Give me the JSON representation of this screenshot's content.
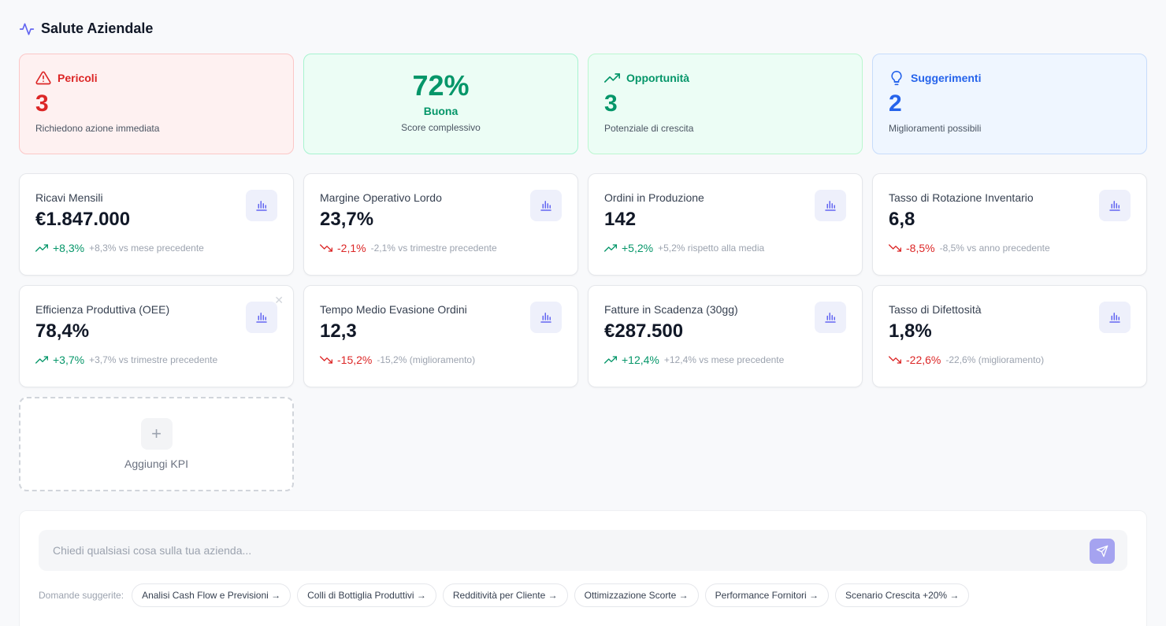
{
  "header": {
    "title": "Salute Aziendale",
    "icon": "activity-icon"
  },
  "summary": {
    "danger": {
      "title": "Pericoli",
      "count": "3",
      "sub": "Richiedono azione immediata",
      "icon": "alert-triangle-icon"
    },
    "score": {
      "value": "72%",
      "label": "Buona",
      "sub": "Score complessivo"
    },
    "opportunity": {
      "title": "Opportunità",
      "count": "3",
      "sub": "Potenziale di crescita",
      "icon": "trending-up-icon"
    },
    "suggestions": {
      "title": "Suggerimenti",
      "count": "2",
      "sub": "Miglioramenti possibili",
      "icon": "lightbulb-icon"
    }
  },
  "kpis": [
    {
      "name": "Ricavi Mensili",
      "value": "€1.847.000",
      "trend": "up",
      "pct": "+8,3%",
      "note": "+8,3% vs mese precedente"
    },
    {
      "name": "Margine Operativo Lordo",
      "value": "23,7%",
      "trend": "down",
      "pct": "-2,1%",
      "note": "-2,1% vs trimestre precedente"
    },
    {
      "name": "Ordini in Produzione",
      "value": "142",
      "trend": "up",
      "pct": "+5,2%",
      "note": "+5,2% rispetto alla media"
    },
    {
      "name": "Tasso di Rotazione Inventario",
      "value": "6,8",
      "trend": "down",
      "pct": "-8,5%",
      "note": "-8,5% vs anno precedente"
    },
    {
      "name": "Efficienza Produttiva (OEE)",
      "value": "78,4%",
      "trend": "up",
      "pct": "+3,7%",
      "note": "+3,7% vs trimestre precedente"
    },
    {
      "name": "Tempo Medio Evasione Ordini",
      "value": "12,3",
      "trend": "down",
      "pct": "-15,2%",
      "note": "-15,2% (miglioramento)"
    },
    {
      "name": "Fatture in Scadenza (30gg)",
      "value": "€287.500",
      "trend": "up",
      "pct": "+12,4%",
      "note": "+12,4% vs mese precedente"
    },
    {
      "name": "Tasso di Difettosità",
      "value": "1,8%",
      "trend": "down",
      "pct": "-22,6%",
      "note": "-22,6% (miglioramento)"
    }
  ],
  "add_kpi": {
    "label": "Aggiungi KPI"
  },
  "chat": {
    "placeholder": "Chiedi qualsiasi cosa sulla tua azienda...",
    "suggest_label": "Domande suggerite:",
    "suggestions": [
      "Analisi Cash Flow e Previsioni →",
      "Colli di Bottiglia Produttivi →",
      "Redditività per Cliente →",
      "Ottimizzazione Scorte →",
      "Performance Fornitori →",
      "Scenario Crescita +20% →"
    ]
  },
  "colors": {
    "accent": "#6366f1",
    "danger": "#dc2626",
    "success": "#059669",
    "info": "#2563eb"
  }
}
